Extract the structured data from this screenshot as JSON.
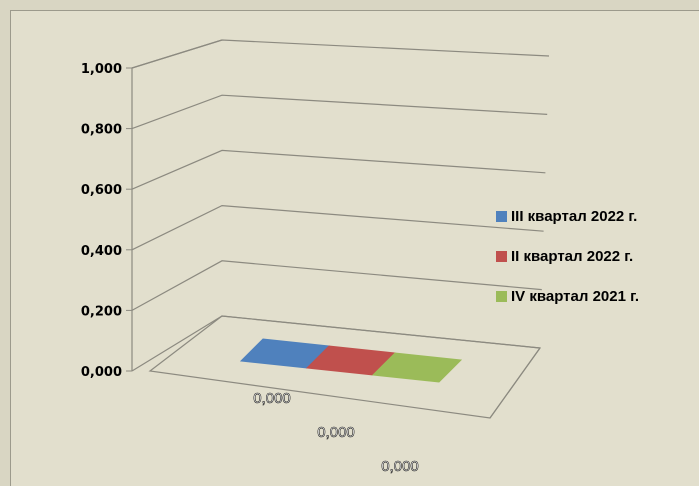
{
  "chart_data": {
    "type": "bar",
    "three_d": true,
    "ylim": [
      0,
      1
    ],
    "y_ticks": [
      "1,000",
      "0,800",
      "0,600",
      "0,400",
      "0,200",
      "0,000"
    ],
    "grid": true,
    "legend_position": "right",
    "series": [
      {
        "name": "III квартал 2022 г.",
        "color": "#4f81bd",
        "value": 0,
        "data_label": "0,000"
      },
      {
        "name": "II квартал 2022 г.",
        "color": "#c0504d",
        "value": 0,
        "data_label": "0,000"
      },
      {
        "name": "IV квартал 2021  г.",
        "color": "#9bbb59",
        "value": 0,
        "data_label": "0,000"
      }
    ]
  }
}
